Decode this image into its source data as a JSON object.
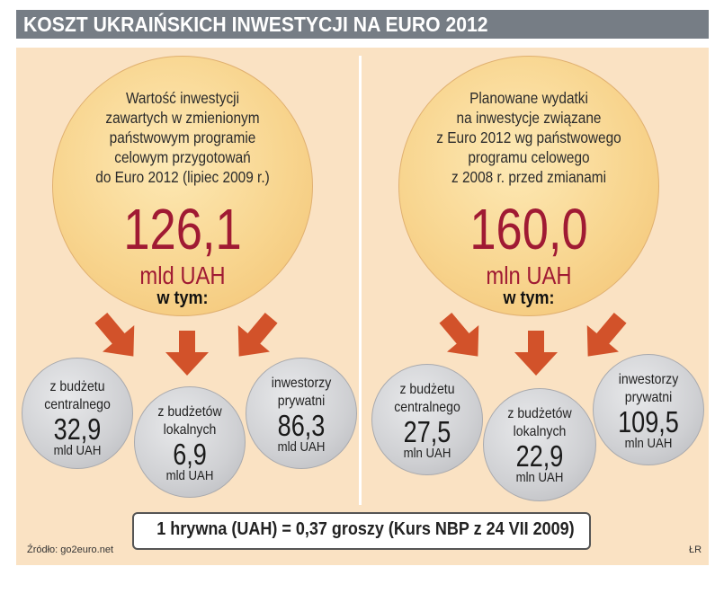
{
  "title": "KOSZT UKRAIŃSKICH INWESTYCJI NA EURO 2012",
  "chart_data": {
    "type": "table",
    "title": "KOSZT UKRAIŃSKICH INWESTYCJI NA EURO 2012",
    "groups": [
      {
        "description": [
          "Wartość inwestycji",
          "zawartych w zmienionym",
          "państwowym programie",
          "celowym przygotowań",
          "do Euro 2012 (lipiec 2009 r.)"
        ],
        "total_text": "126,1",
        "total": 126.1,
        "unit": "mld UAH",
        "breakdown_label": "w tym:",
        "components": [
          {
            "label": [
              "z budżetu",
              "centralnego"
            ],
            "value_text": "32,9",
            "value": 32.9,
            "unit": "mld UAH"
          },
          {
            "label": [
              "z budżetów",
              "lokalnych"
            ],
            "value_text": "6,9",
            "value": 6.9,
            "unit": "mld UAH"
          },
          {
            "label": [
              "inwestorzy",
              "prywatni"
            ],
            "value_text": "86,3",
            "value": 86.3,
            "unit": "mld UAH"
          }
        ]
      },
      {
        "description": [
          "Planowane wydatki",
          "na inwestycje związane",
          "z Euro 2012 wg państwowego",
          "programu celowego",
          "z  2008 r. przed zmianami"
        ],
        "total_text": "160,0",
        "total": 160.0,
        "unit": "mln UAH",
        "breakdown_label": "w tym:",
        "components": [
          {
            "label": [
              "z budżetu",
              "centralnego"
            ],
            "value_text": "27,5",
            "value": 27.5,
            "unit": "mln UAH"
          },
          {
            "label": [
              "z budżetów",
              "lokalnych"
            ],
            "value_text": "22,9",
            "value": 22.9,
            "unit": "mln UAH"
          },
          {
            "label": [
              "inwestorzy",
              "prywatni"
            ],
            "value_text": "109,5",
            "value": 109.5,
            "unit": "mln UAH"
          }
        ]
      }
    ]
  },
  "exchange_note": "1 hrywna (UAH) = 0,37 groszy (Kurs NBP z 24 VII 2009)",
  "source": "Źródło: go2euro.net",
  "author": "ŁR",
  "colors": {
    "title_bg": "#767d85",
    "panel_bg": "#fae2c3",
    "accent": "#a01a33",
    "arrow": "#d2522a",
    "small_circle": "#cfd0d3"
  }
}
